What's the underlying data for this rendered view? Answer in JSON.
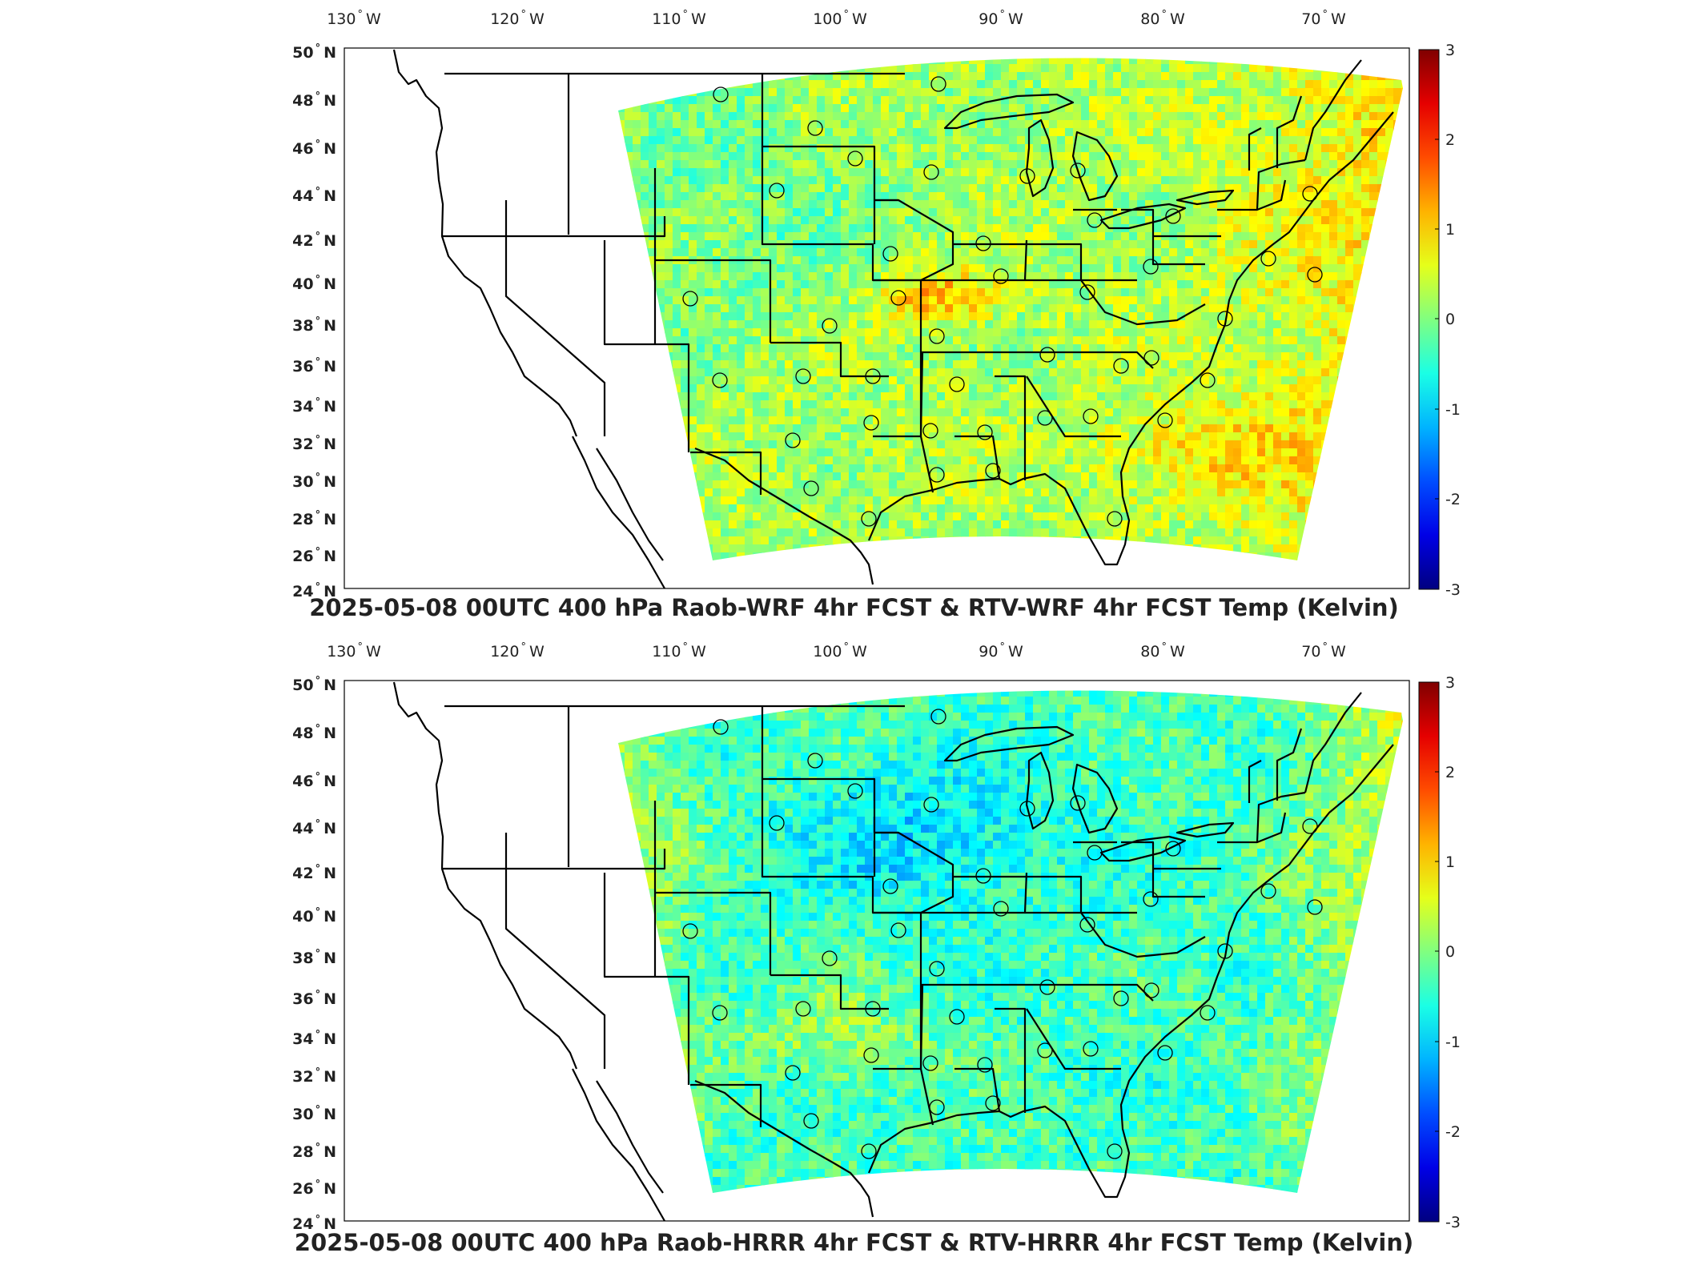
{
  "panels": [
    {
      "id": "wrf",
      "title": "2025-05-08 00UTC 400 hPa Raob-WRF 4hr FCST & RTV-WRF 4hr FCST Temp (Kelvin)",
      "variant": "warm"
    },
    {
      "id": "hrrr",
      "title": "2025-05-08 00UTC 400 hPa Raob-HRRR 4hr FCST & RTV-HRRR 4hr FCST Temp (Kelvin)",
      "variant": "cool"
    }
  ],
  "lon_labels": [
    "130",
    "120",
    "110",
    "100",
    "90",
    "80",
    "70"
  ],
  "lon_suffix": "W",
  "lat_labels": [
    "50",
    "48",
    "46",
    "44",
    "42",
    "40",
    "38",
    "36",
    "34",
    "32",
    "30",
    "28",
    "26",
    "24"
  ],
  "lat_suffix": "N",
  "colorbar": {
    "ticks": [
      "3",
      "2",
      "1",
      "0",
      "-1",
      "-2",
      "-3"
    ],
    "min": -3,
    "max": 3,
    "colormap": "jet"
  },
  "colors": {
    "frame": "#000000",
    "boundary": "#000000",
    "station": "#000000"
  }
}
